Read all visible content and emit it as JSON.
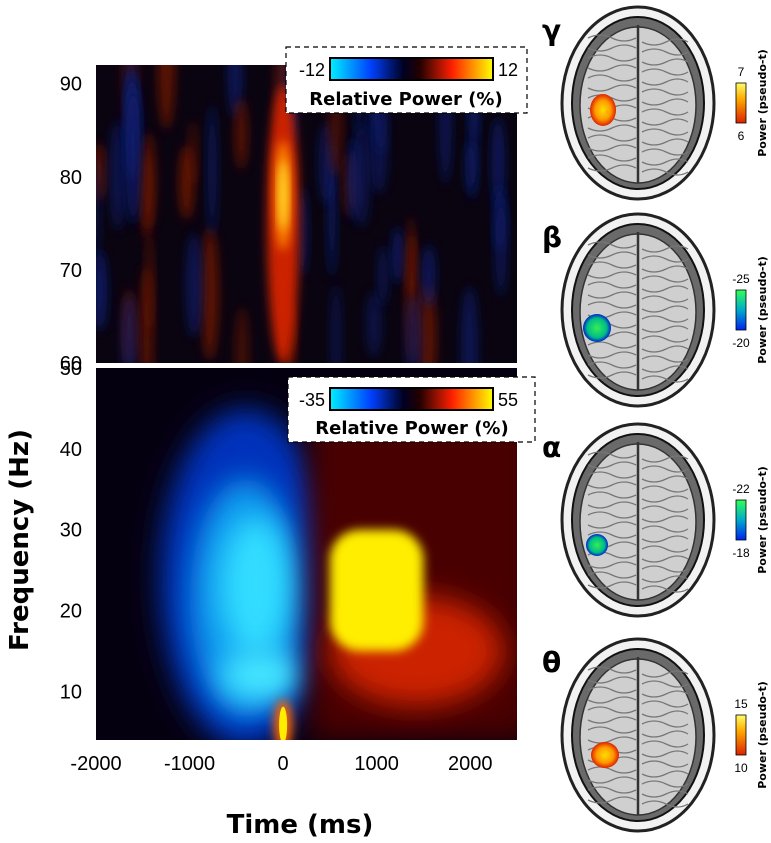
{
  "chart_data": [
    {
      "type": "heatmap",
      "panel": "gamma",
      "xlim": [
        -2000,
        2500
      ],
      "ylim": [
        60,
        92
      ],
      "yticks": [
        60,
        70,
        80,
        90
      ],
      "colorbar": {
        "min": -12,
        "max": 12,
        "min_label": "-12",
        "max_label": "12",
        "label": "Relative Power (%)"
      },
      "features": [
        {
          "kind": "increase",
          "time_ms": [
            -100,
            100
          ],
          "freq_hz": [
            62,
            92
          ],
          "peak_time_ms": 0,
          "peak_freq_hz": 78,
          "peak_value": 12
        }
      ]
    },
    {
      "type": "heatmap",
      "panel": "low-frequency",
      "xlim": [
        -2000,
        2500
      ],
      "ylim": [
        4,
        50
      ],
      "yticks": [
        10,
        20,
        30,
        40,
        50
      ],
      "xticks": [
        -2000,
        -1000,
        0,
        1000,
        2000
      ],
      "xlabel": "Time (ms)",
      "ylabel": "Frequency (Hz)",
      "colorbar": {
        "min": -35,
        "max": 55,
        "min_label": "-35",
        "max_label": "55",
        "label": "Relative Power (%)"
      },
      "features": [
        {
          "kind": "decrease",
          "time_ms": [
            -1100,
            300
          ],
          "freq_hz": [
            8,
            40
          ],
          "peak_value": -35
        },
        {
          "kind": "increase",
          "time_ms": [
            500,
            1500
          ],
          "freq_hz": [
            15,
            30
          ],
          "peak_time_ms": 900,
          "peak_freq_hz": 22,
          "peak_value": 55
        },
        {
          "kind": "increase",
          "time_ms": [
            -60,
            60
          ],
          "freq_hz": [
            4,
            9
          ],
          "peak_value": 55
        }
      ]
    }
  ],
  "brain_maps": [
    {
      "band": "γ",
      "symbol": "gamma-symbol",
      "colormap": "hot",
      "cbar_top": "7",
      "cbar_bottom": "6",
      "label": "Power (pseudo-t)"
    },
    {
      "band": "β",
      "symbol": "beta-symbol",
      "colormap": "cool",
      "cbar_top": "-25",
      "cbar_bottom": "-20",
      "label": "Power (pseudo-t)"
    },
    {
      "band": "α",
      "symbol": "alpha-symbol",
      "colormap": "cool",
      "cbar_top": "-22",
      "cbar_bottom": "-18",
      "label": "Power (pseudo-t)"
    },
    {
      "band": "θ",
      "symbol": "theta-symbol",
      "colormap": "hot",
      "cbar_top": "15",
      "cbar_bottom": "10",
      "label": "Power (pseudo-t)"
    }
  ],
  "colors": {
    "hot_low": "#cc2200",
    "hot_high": "#ffee00",
    "cool_low": "#0033cc",
    "cool_high": "#33ee66"
  }
}
